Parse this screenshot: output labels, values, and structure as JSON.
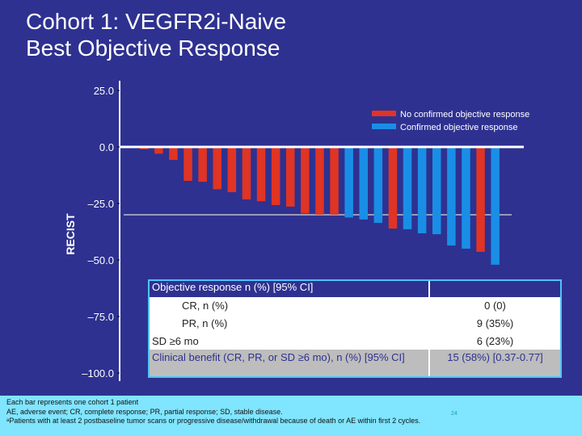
{
  "title": [
    "Cohort 1: VEGFR2i-Naive",
    "Best Objective Response"
  ],
  "chart_data": {
    "type": "bar",
    "ylabel": "RECIST",
    "ylim": [
      -100,
      25
    ],
    "yticks": [
      "25.0",
      "0.0",
      "–25.0",
      "–50.0",
      "–75.0",
      "–100.0"
    ],
    "ytick_values": [
      25,
      0,
      -25,
      -50,
      -75,
      -100
    ],
    "reference_line": -30,
    "legend": [
      {
        "name": "No confirmed objective response",
        "color": "#e03424"
      },
      {
        "name": "Confirmed objective response",
        "color": "#1a8ee6"
      }
    ],
    "legend_position": "top-right",
    "values": [
      -1,
      -3,
      -5.7,
      -15,
      -15.4,
      -18.7,
      -20,
      -23.2,
      -24,
      -25.7,
      -26.4,
      -29.4,
      -29.9,
      -29.9,
      -31.2,
      -32.1,
      -33.6,
      -36.1,
      -36.4,
      -38.2,
      -38.6,
      -43.6,
      -45,
      -46.4,
      -52.1
    ],
    "confirmed": [
      0,
      0,
      0,
      0,
      0,
      0,
      0,
      0,
      0,
      0,
      0,
      0,
      0,
      0,
      1,
      1,
      1,
      0,
      1,
      1,
      1,
      1,
      1,
      0,
      1
    ]
  },
  "table": {
    "header": "Objective response n (%) [95% CI]",
    "rows": [
      {
        "label": "CR, n (%)",
        "value": "0 (0)"
      },
      {
        "label": "PR, n (%)",
        "value": "9 (35%)"
      },
      {
        "label": "SD ≥6 mo",
        "value": "6 (23%)"
      },
      {
        "label": "Clinical benefit (CR, PR, or SD ≥6 mo), n (%) [95% CI]",
        "value": "15 (58%) [0.37-0.77]"
      }
    ]
  },
  "footnotes": [
    "Each bar represents one cohort 1 patient",
    "AE, adverse event; CR, complete response; PR, partial response; SD, stable disease.",
    "ᵃPatients with at least 2 postbaseline tumor scans or progressive disease/withdrawal because of death or AE within first 2 cycles."
  ],
  "page_number": "24"
}
